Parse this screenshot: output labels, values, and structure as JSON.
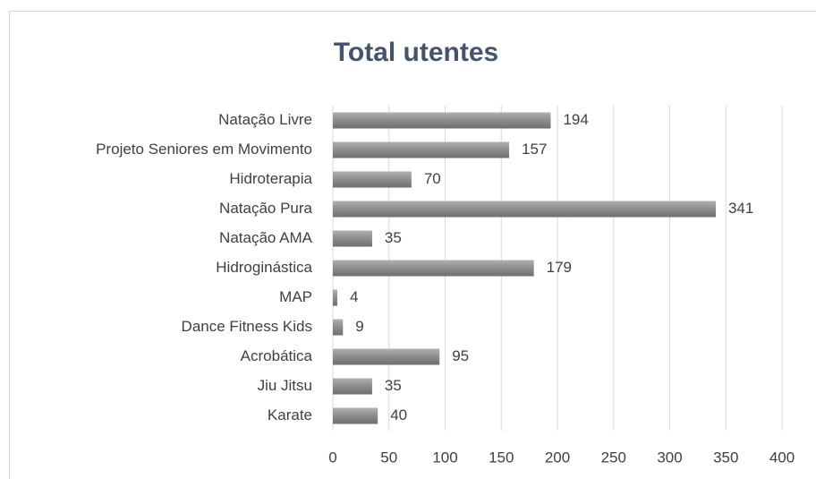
{
  "chart_data": {
    "type": "bar",
    "orientation": "horizontal",
    "title": "Total utentes",
    "categories": [
      "Natação Livre",
      "Projeto Seniores em Movimento",
      "Hidroterapia",
      "Natação Pura",
      "Natação AMA",
      "Hidroginástica",
      "MAP",
      "Dance Fitness Kids",
      "Acrobática",
      "Jiu Jitsu",
      "Karate"
    ],
    "values": [
      194,
      157,
      70,
      341,
      35,
      179,
      4,
      9,
      95,
      35,
      40
    ],
    "color": "#8c8c8c",
    "xlim": [
      0,
      400
    ],
    "xticks": [
      0,
      50,
      100,
      150,
      200,
      250,
      300,
      350,
      400
    ],
    "grid": true
  }
}
